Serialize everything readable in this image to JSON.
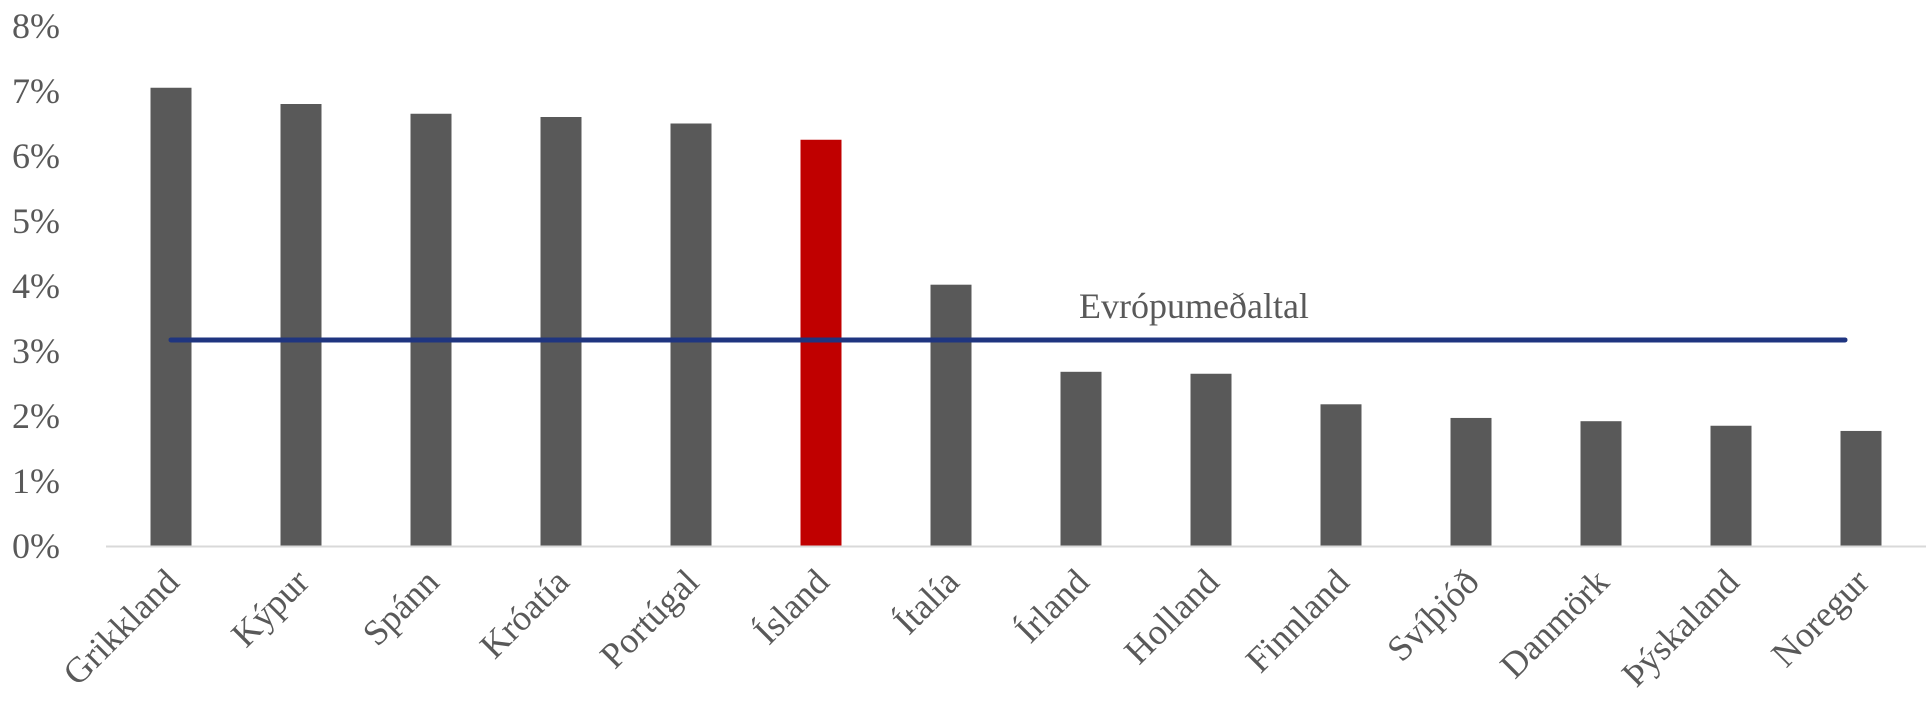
{
  "chart_data": {
    "type": "bar",
    "categories": [
      "Grikkland",
      "Kýpur",
      "Spánn",
      "Króatía",
      "Portúgal",
      "Ísland",
      "Ítalía",
      "Írland",
      "Holland",
      "Finnland",
      "Svíþjóð",
      "Danmörk",
      "Þýskaland",
      "Noregur"
    ],
    "values": [
      7.05,
      6.8,
      6.65,
      6.6,
      6.5,
      6.25,
      4.02,
      2.68,
      2.65,
      2.18,
      1.97,
      1.92,
      1.85,
      1.77
    ],
    "highlight_category": "Ísland",
    "ylim": [
      0,
      8
    ],
    "yticks": [
      "0%",
      "1%",
      "2%",
      "3%",
      "4%",
      "5%",
      "6%",
      "7%",
      "8%"
    ],
    "reference_line": {
      "label": "Evrópumeðaltal",
      "value": 3.17
    },
    "colors": {
      "bar": "#595959",
      "highlight": "#c00000",
      "reference_line": "#1f3580",
      "axis": "#d9d9d9",
      "text": "#595959"
    },
    "xlabel": "",
    "ylabel": "",
    "title": "",
    "grid": false,
    "legend": "none"
  }
}
